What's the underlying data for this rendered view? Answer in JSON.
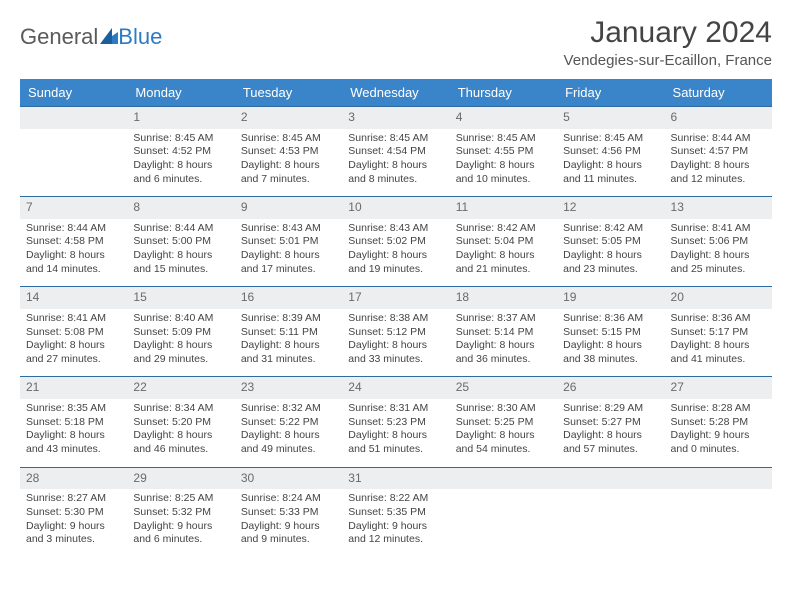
{
  "logo": {
    "text1": "General",
    "text2": "Blue"
  },
  "title": "January 2024",
  "location": "Vendegies-sur-Ecaillon, France",
  "header_bg": "#3a85c9",
  "header_fg": "#ffffff",
  "daynum_bg": "#eceef0",
  "week_border": "#2f6aa3",
  "days_of_week": [
    "Sunday",
    "Monday",
    "Tuesday",
    "Wednesday",
    "Thursday",
    "Friday",
    "Saturday"
  ],
  "weeks": [
    [
      null,
      {
        "n": "1",
        "sr": "Sunrise: 8:45 AM",
        "ss": "Sunset: 4:52 PM",
        "d1": "Daylight: 8 hours",
        "d2": "and 6 minutes."
      },
      {
        "n": "2",
        "sr": "Sunrise: 8:45 AM",
        "ss": "Sunset: 4:53 PM",
        "d1": "Daylight: 8 hours",
        "d2": "and 7 minutes."
      },
      {
        "n": "3",
        "sr": "Sunrise: 8:45 AM",
        "ss": "Sunset: 4:54 PM",
        "d1": "Daylight: 8 hours",
        "d2": "and 8 minutes."
      },
      {
        "n": "4",
        "sr": "Sunrise: 8:45 AM",
        "ss": "Sunset: 4:55 PM",
        "d1": "Daylight: 8 hours",
        "d2": "and 10 minutes."
      },
      {
        "n": "5",
        "sr": "Sunrise: 8:45 AM",
        "ss": "Sunset: 4:56 PM",
        "d1": "Daylight: 8 hours",
        "d2": "and 11 minutes."
      },
      {
        "n": "6",
        "sr": "Sunrise: 8:44 AM",
        "ss": "Sunset: 4:57 PM",
        "d1": "Daylight: 8 hours",
        "d2": "and 12 minutes."
      }
    ],
    [
      {
        "n": "7",
        "sr": "Sunrise: 8:44 AM",
        "ss": "Sunset: 4:58 PM",
        "d1": "Daylight: 8 hours",
        "d2": "and 14 minutes."
      },
      {
        "n": "8",
        "sr": "Sunrise: 8:44 AM",
        "ss": "Sunset: 5:00 PM",
        "d1": "Daylight: 8 hours",
        "d2": "and 15 minutes."
      },
      {
        "n": "9",
        "sr": "Sunrise: 8:43 AM",
        "ss": "Sunset: 5:01 PM",
        "d1": "Daylight: 8 hours",
        "d2": "and 17 minutes."
      },
      {
        "n": "10",
        "sr": "Sunrise: 8:43 AM",
        "ss": "Sunset: 5:02 PM",
        "d1": "Daylight: 8 hours",
        "d2": "and 19 minutes."
      },
      {
        "n": "11",
        "sr": "Sunrise: 8:42 AM",
        "ss": "Sunset: 5:04 PM",
        "d1": "Daylight: 8 hours",
        "d2": "and 21 minutes."
      },
      {
        "n": "12",
        "sr": "Sunrise: 8:42 AM",
        "ss": "Sunset: 5:05 PM",
        "d1": "Daylight: 8 hours",
        "d2": "and 23 minutes."
      },
      {
        "n": "13",
        "sr": "Sunrise: 8:41 AM",
        "ss": "Sunset: 5:06 PM",
        "d1": "Daylight: 8 hours",
        "d2": "and 25 minutes."
      }
    ],
    [
      {
        "n": "14",
        "sr": "Sunrise: 8:41 AM",
        "ss": "Sunset: 5:08 PM",
        "d1": "Daylight: 8 hours",
        "d2": "and 27 minutes."
      },
      {
        "n": "15",
        "sr": "Sunrise: 8:40 AM",
        "ss": "Sunset: 5:09 PM",
        "d1": "Daylight: 8 hours",
        "d2": "and 29 minutes."
      },
      {
        "n": "16",
        "sr": "Sunrise: 8:39 AM",
        "ss": "Sunset: 5:11 PM",
        "d1": "Daylight: 8 hours",
        "d2": "and 31 minutes."
      },
      {
        "n": "17",
        "sr": "Sunrise: 8:38 AM",
        "ss": "Sunset: 5:12 PM",
        "d1": "Daylight: 8 hours",
        "d2": "and 33 minutes."
      },
      {
        "n": "18",
        "sr": "Sunrise: 8:37 AM",
        "ss": "Sunset: 5:14 PM",
        "d1": "Daylight: 8 hours",
        "d2": "and 36 minutes."
      },
      {
        "n": "19",
        "sr": "Sunrise: 8:36 AM",
        "ss": "Sunset: 5:15 PM",
        "d1": "Daylight: 8 hours",
        "d2": "and 38 minutes."
      },
      {
        "n": "20",
        "sr": "Sunrise: 8:36 AM",
        "ss": "Sunset: 5:17 PM",
        "d1": "Daylight: 8 hours",
        "d2": "and 41 minutes."
      }
    ],
    [
      {
        "n": "21",
        "sr": "Sunrise: 8:35 AM",
        "ss": "Sunset: 5:18 PM",
        "d1": "Daylight: 8 hours",
        "d2": "and 43 minutes."
      },
      {
        "n": "22",
        "sr": "Sunrise: 8:34 AM",
        "ss": "Sunset: 5:20 PM",
        "d1": "Daylight: 8 hours",
        "d2": "and 46 minutes."
      },
      {
        "n": "23",
        "sr": "Sunrise: 8:32 AM",
        "ss": "Sunset: 5:22 PM",
        "d1": "Daylight: 8 hours",
        "d2": "and 49 minutes."
      },
      {
        "n": "24",
        "sr": "Sunrise: 8:31 AM",
        "ss": "Sunset: 5:23 PM",
        "d1": "Daylight: 8 hours",
        "d2": "and 51 minutes."
      },
      {
        "n": "25",
        "sr": "Sunrise: 8:30 AM",
        "ss": "Sunset: 5:25 PM",
        "d1": "Daylight: 8 hours",
        "d2": "and 54 minutes."
      },
      {
        "n": "26",
        "sr": "Sunrise: 8:29 AM",
        "ss": "Sunset: 5:27 PM",
        "d1": "Daylight: 8 hours",
        "d2": "and 57 minutes."
      },
      {
        "n": "27",
        "sr": "Sunrise: 8:28 AM",
        "ss": "Sunset: 5:28 PM",
        "d1": "Daylight: 9 hours",
        "d2": "and 0 minutes."
      }
    ],
    [
      {
        "n": "28",
        "sr": "Sunrise: 8:27 AM",
        "ss": "Sunset: 5:30 PM",
        "d1": "Daylight: 9 hours",
        "d2": "and 3 minutes."
      },
      {
        "n": "29",
        "sr": "Sunrise: 8:25 AM",
        "ss": "Sunset: 5:32 PM",
        "d1": "Daylight: 9 hours",
        "d2": "and 6 minutes."
      },
      {
        "n": "30",
        "sr": "Sunrise: 8:24 AM",
        "ss": "Sunset: 5:33 PM",
        "d1": "Daylight: 9 hours",
        "d2": "and 9 minutes."
      },
      {
        "n": "31",
        "sr": "Sunrise: 8:22 AM",
        "ss": "Sunset: 5:35 PM",
        "d1": "Daylight: 9 hours",
        "d2": "and 12 minutes."
      },
      null,
      null,
      null
    ]
  ]
}
